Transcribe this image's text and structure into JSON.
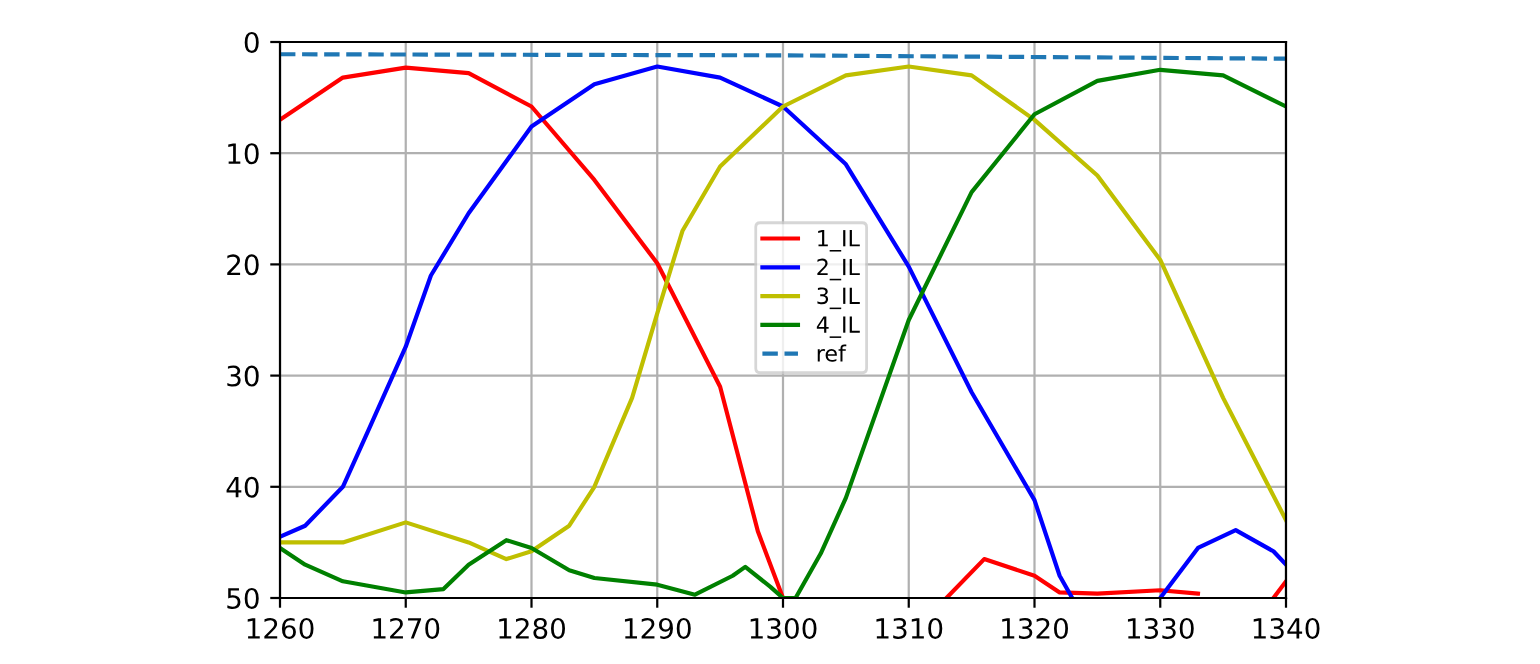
{
  "chart_data": {
    "type": "line",
    "xlim": [
      1260,
      1340
    ],
    "ylim": [
      50,
      0
    ],
    "xticks": [
      1260,
      1270,
      1280,
      1290,
      1300,
      1310,
      1320,
      1330,
      1340
    ],
    "yticks": [
      0,
      10,
      20,
      30,
      40,
      50
    ],
    "grid": true,
    "legend": "center",
    "series": [
      {
        "name": "1_IL",
        "color": "#ff0000",
        "x": [
          1260,
          1265,
          1270,
          1275,
          1280,
          1285,
          1290,
          1295,
          1298,
          1300,
          1305,
          1313,
          1316,
          1320,
          1322,
          1325,
          1330,
          1333,
          1335,
          1339,
          1340
        ],
        "values": [
          7,
          3.2,
          2.3,
          2.8,
          5.8,
          12.4,
          19.9,
          31,
          44,
          50,
          null,
          50,
          46.5,
          48,
          49.5,
          49.6,
          49.3,
          49.6,
          null,
          50,
          48.5
        ]
      },
      {
        "name": "2_IL",
        "color": "#0000ff",
        "x": [
          1260,
          1262,
          1265,
          1267,
          1270,
          1272,
          1275,
          1280,
          1285,
          1290,
          1295,
          1300,
          1305,
          1310,
          1315,
          1320,
          1322,
          1323,
          1326,
          1330,
          1333,
          1336,
          1339,
          1340
        ],
        "values": [
          44.5,
          43.5,
          40,
          35,
          27.4,
          21,
          15.4,
          7.6,
          3.8,
          2.2,
          3.2,
          5.8,
          11,
          20.2,
          31.5,
          41.2,
          48,
          50,
          null,
          50,
          45.5,
          43.9,
          45.8,
          47
        ]
      },
      {
        "name": "3_IL",
        "color": "#bfbf00",
        "x": [
          1260,
          1265,
          1270,
          1275,
          1278,
          1280,
          1283,
          1285,
          1288,
          1290,
          1292,
          1295,
          1300,
          1305,
          1310,
          1315,
          1320,
          1325,
          1330,
          1335,
          1340
        ],
        "values": [
          45,
          45,
          43.2,
          45,
          46.5,
          45.8,
          43.5,
          40,
          32,
          24.4,
          17,
          11.2,
          5.8,
          3,
          2.2,
          3,
          7,
          12,
          19.6,
          32,
          43
        ]
      },
      {
        "name": "4_IL",
        "color": "#008000",
        "x": [
          1260,
          1262,
          1265,
          1270,
          1273,
          1275,
          1278,
          1280,
          1283,
          1285,
          1290,
          1293,
          1296,
          1297,
          1299,
          1300,
          1301,
          1303,
          1305,
          1310,
          1315,
          1320,
          1325,
          1330,
          1335,
          1340
        ],
        "values": [
          45.5,
          47,
          48.5,
          49.5,
          49.2,
          47,
          44.8,
          45.5,
          47.5,
          48.2,
          48.8,
          49.7,
          48,
          47.2,
          49,
          50,
          50,
          46,
          41,
          25,
          13.5,
          6.5,
          3.5,
          2.5,
          3,
          5.8
        ]
      },
      {
        "name": "ref",
        "color": "#1f77b4",
        "line_style": "dashed",
        "x": [
          1260,
          1300,
          1340
        ],
        "values": [
          1.1,
          1.2,
          1.5
        ]
      }
    ]
  }
}
